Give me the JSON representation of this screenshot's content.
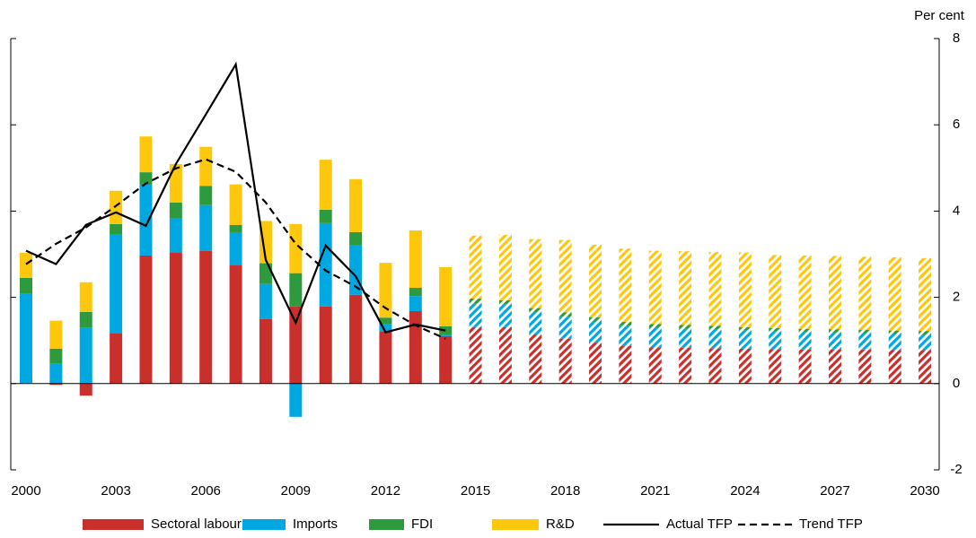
{
  "chart_data": {
    "type": "stacked_bar_line",
    "y_axis_label": "Per cent",
    "categories": [
      "2000",
      null,
      null,
      "2003",
      null,
      null,
      "2006",
      null,
      null,
      "2009",
      null,
      null,
      "2012",
      null,
      null,
      "2015",
      null,
      null,
      "2018",
      null,
      null,
      "2021",
      null,
      null,
      "2024",
      null,
      null,
      "2027",
      null,
      null,
      "2030"
    ],
    "hatched_from": "2015",
    "ylim": [
      -2,
      8
    ],
    "yticks": [
      -2,
      0,
      2,
      4,
      6,
      8
    ],
    "series": [
      {
        "name": "Sectoral labour",
        "kind": "bar",
        "color": "#c9302c",
        "values": [
          0,
          -0.03,
          -0.28,
          1.16,
          2.97,
          3.04,
          3.08,
          2.74,
          1.5,
          1.79,
          1.79,
          2.06,
          1.21,
          1.68,
          1.1,
          1.31,
          1.31,
          1.14,
          1.04,
          0.95,
          0.87,
          0.84,
          0.83,
          0.82,
          0.81,
          0.8,
          0.79,
          0.79,
          0.79,
          0.78,
          0.78
        ]
      },
      {
        "name": "Imports",
        "kind": "bar",
        "color": "#00a8e1",
        "values": [
          2.08,
          0.46,
          1.29,
          2.29,
          1.64,
          0.79,
          1.06,
          0.77,
          0.81,
          -0.77,
          1.93,
          1.14,
          0.17,
          0.35,
          0.03,
          0.54,
          0.52,
          0.51,
          0.51,
          0.49,
          0.47,
          0.45,
          0.44,
          0.43,
          0.42,
          0.41,
          0.4,
          0.39,
          0.38,
          0.37,
          0.36
        ]
      },
      {
        "name": "FDI",
        "kind": "bar",
        "color": "#2e9a3e",
        "values": [
          0.37,
          0.35,
          0.37,
          0.25,
          0.29,
          0.37,
          0.44,
          0.17,
          0.48,
          0.77,
          0.31,
          0.31,
          0.15,
          0.19,
          0.2,
          0.12,
          0.1,
          0.1,
          0.1,
          0.1,
          0.09,
          0.09,
          0.09,
          0.09,
          0.08,
          0.08,
          0.08,
          0.08,
          0.08,
          0.08,
          0.08
        ]
      },
      {
        "name": "R&D",
        "kind": "bar",
        "color": "#fdc70c",
        "values": [
          0.58,
          0.65,
          0.69,
          0.77,
          0.83,
          0.89,
          0.91,
          0.94,
          0.98,
          1.14,
          1.16,
          1.23,
          1.27,
          1.33,
          1.37,
          1.46,
          1.52,
          1.6,
          1.68,
          1.68,
          1.7,
          1.7,
          1.71,
          1.71,
          1.73,
          1.69,
          1.7,
          1.7,
          1.69,
          1.7,
          1.69
        ]
      },
      {
        "name": "Actual TFP",
        "kind": "line",
        "color": "#000000",
        "dashed": false,
        "values": [
          3.08,
          2.77,
          3.68,
          3.97,
          3.66,
          5.09,
          6.24,
          7.4,
          2.87,
          1.41,
          3.2,
          2.49,
          1.19,
          1.37,
          1.23,
          null,
          null,
          null,
          null,
          null,
          null,
          null,
          null,
          null,
          null,
          null,
          null,
          null,
          null,
          null,
          null
        ]
      },
      {
        "name": "Trend TFP",
        "kind": "line",
        "color": "#000000",
        "dashed": true,
        "values": [
          2.77,
          3.24,
          3.62,
          4.12,
          4.64,
          4.99,
          5.2,
          4.91,
          4.2,
          3.24,
          2.62,
          2.25,
          1.75,
          1.35,
          1.04,
          null,
          null,
          null,
          null,
          null,
          null,
          null,
          null,
          null,
          null,
          null,
          null,
          null,
          null,
          null,
          null
        ]
      }
    ]
  }
}
